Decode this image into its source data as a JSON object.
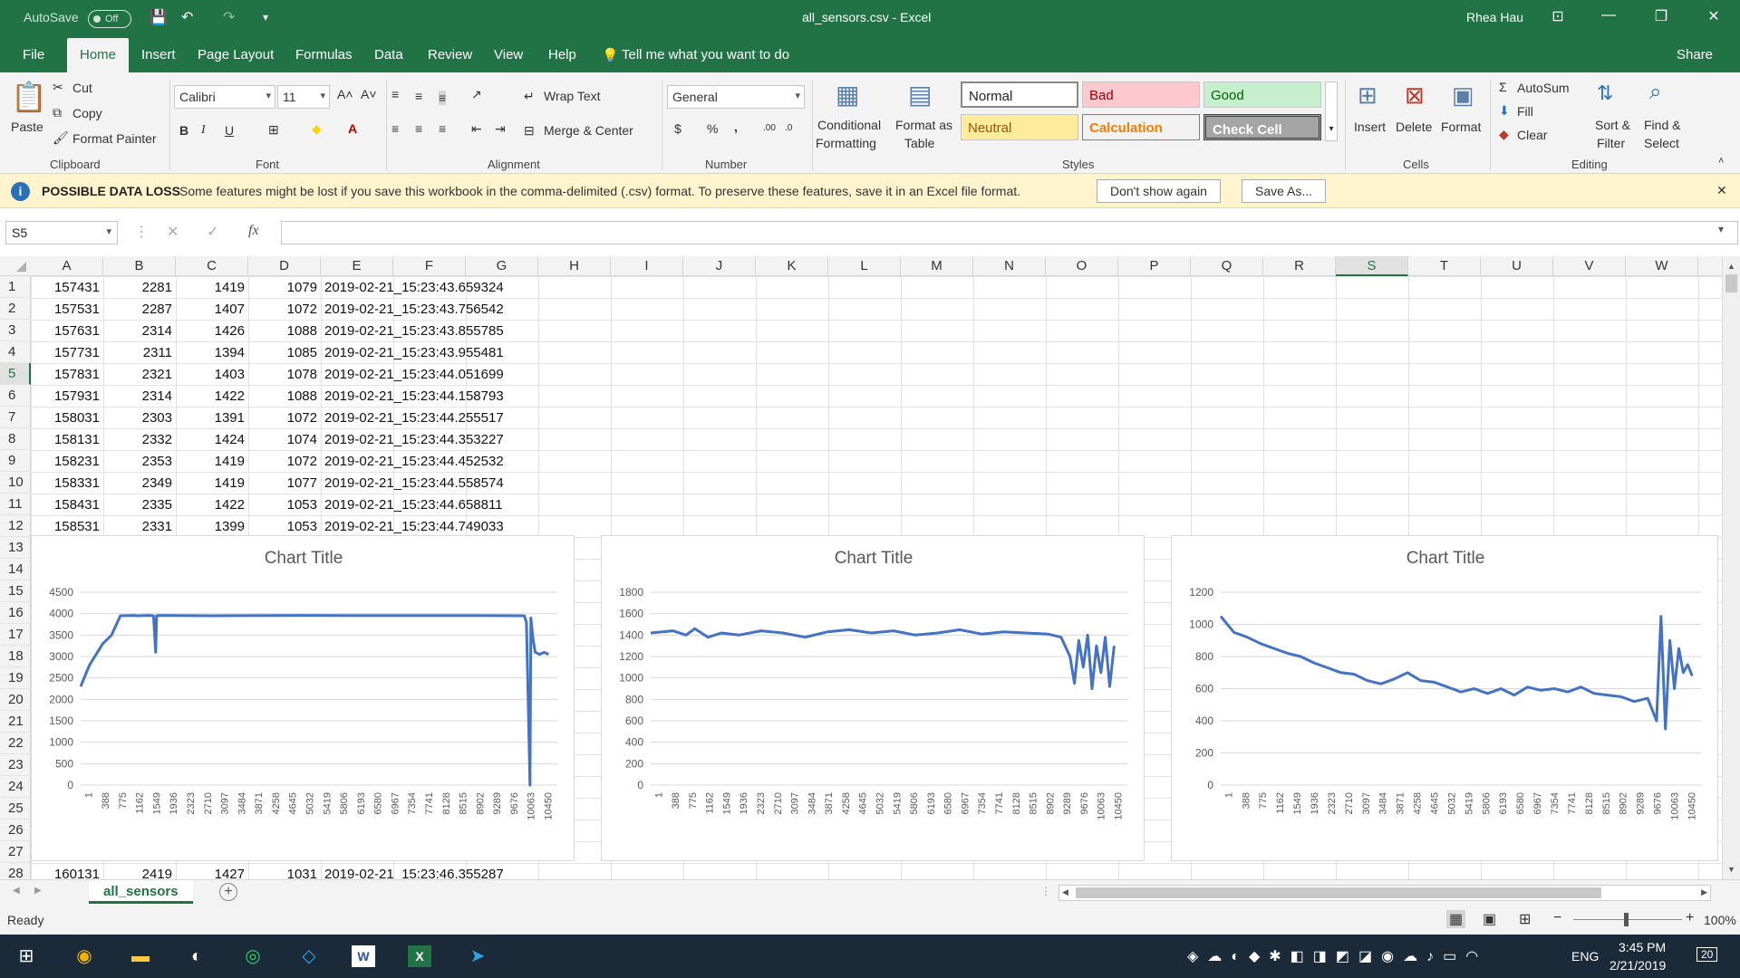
{
  "titlebar": {
    "autosave_label": "AutoSave",
    "autosave_state": "Off",
    "title": "all_sensors.csv  -  Excel",
    "user": "Rhea Hau"
  },
  "menu": {
    "tabs": [
      "File",
      "Home",
      "Insert",
      "Page Layout",
      "Formulas",
      "Data",
      "Review",
      "View",
      "Help"
    ],
    "tell_me": "Tell me what you want to do",
    "share": "Share"
  },
  "ribbon": {
    "clipboard": {
      "paste": "Paste",
      "cut": "Cut",
      "copy": "Copy",
      "format_painter": "Format Painter",
      "group": "Clipboard"
    },
    "font": {
      "name": "Calibri",
      "size": "11",
      "group": "Font"
    },
    "alignment": {
      "wrap_text": "Wrap Text",
      "merge_center": "Merge & Center",
      "group": "Alignment"
    },
    "number": {
      "format": "General",
      "currency": "$",
      "percent": "%",
      "comma": ",",
      "group": "Number"
    },
    "styles": {
      "conditional": "Conditional",
      "formatting": "Formatting",
      "format_as": "Format as",
      "table": "Table",
      "normal": "Normal",
      "bad": "Bad",
      "good": "Good",
      "neutral": "Neutral",
      "calculation": "Calculation",
      "check_cell": "Check Cell",
      "group": "Styles"
    },
    "cells": {
      "insert": "Insert",
      "delete": "Delete",
      "format": "Format",
      "group": "Cells"
    },
    "editing": {
      "autosum": "AutoSum",
      "fill": "Fill",
      "clear": "Clear",
      "sort1": "Sort &",
      "sort2": "Filter",
      "find1": "Find &",
      "find2": "Select",
      "group": "Editing"
    }
  },
  "infobar": {
    "title": "POSSIBLE DATA LOSS",
    "message": "Some features might be lost if you save this workbook in the comma-delimited (.csv) format. To preserve these features, save it in an Excel file format.",
    "dont_show": "Don't show again",
    "save_as": "Save As..."
  },
  "formula": {
    "namebox": "S5",
    "fx": "fx",
    "value": ""
  },
  "columns": [
    "A",
    "B",
    "C",
    "D",
    "E",
    "F",
    "G",
    "H",
    "I",
    "J",
    "K",
    "L",
    "M",
    "N",
    "O",
    "P",
    "Q",
    "R",
    "S",
    "T",
    "U",
    "V",
    "W"
  ],
  "selected_column": "S",
  "selected_row": 5,
  "rows": [
    "1",
    "2",
    "3",
    "4",
    "5",
    "6",
    "7",
    "8",
    "9",
    "10",
    "11",
    "12",
    "13",
    "14",
    "15",
    "16",
    "17",
    "18",
    "19",
    "20",
    "21",
    "22",
    "23",
    "24",
    "25",
    "26",
    "27",
    "28"
  ],
  "data_rows": [
    [
      "157431",
      "2281",
      "1419",
      "1079",
      "2019-02-21_15:23:43.659324"
    ],
    [
      "157531",
      "2287",
      "1407",
      "1072",
      "2019-02-21_15:23:43.756542"
    ],
    [
      "157631",
      "2314",
      "1426",
      "1088",
      "2019-02-21_15:23:43.855785"
    ],
    [
      "157731",
      "2311",
      "1394",
      "1085",
      "2019-02-21_15:23:43.955481"
    ],
    [
      "157831",
      "2321",
      "1403",
      "1078",
      "2019-02-21_15:23:44.051699"
    ],
    [
      "157931",
      "2314",
      "1422",
      "1088",
      "2019-02-21_15:23:44.158793"
    ],
    [
      "158031",
      "2303",
      "1391",
      "1072",
      "2019-02-21_15:23:44.255517"
    ],
    [
      "158131",
      "2332",
      "1424",
      "1074",
      "2019-02-21_15:23:44.353227"
    ],
    [
      "158231",
      "2353",
      "1419",
      "1072",
      "2019-02-21_15:23:44.452532"
    ],
    [
      "158331",
      "2349",
      "1419",
      "1077",
      "2019-02-21_15:23:44.558574"
    ],
    [
      "158431",
      "2335",
      "1422",
      "1053",
      "2019-02-21_15:23:44.658811"
    ],
    [
      "158531",
      "2331",
      "1399",
      "1053",
      "2019-02-21_15:23:44.749033"
    ]
  ],
  "row28": [
    "160131",
    "2419",
    "1427",
    "1031",
    "2019-02-21_15:23:46.355287"
  ],
  "chart_data": [
    {
      "type": "line",
      "title": "Chart Title",
      "ylim": [
        0,
        4500
      ],
      "yticks": [
        0,
        500,
        1000,
        1500,
        2000,
        2500,
        3000,
        3500,
        4000,
        4500
      ],
      "xticks": [
        "1",
        "388",
        "775",
        "1162",
        "1549",
        "1936",
        "2323",
        "2710",
        "3097",
        "3484",
        "3871",
        "4258",
        "4645",
        "5032",
        "5419",
        "5806",
        "6193",
        "6580",
        "6967",
        "7354",
        "7741",
        "8128",
        "8515",
        "8902",
        "9289",
        "9676",
        "10063",
        "10450"
      ],
      "xmax": 10800,
      "series": [
        {
          "values": [
            [
              1,
              2300
            ],
            [
              200,
              2800
            ],
            [
              500,
              3300
            ],
            [
              700,
              3500
            ],
            [
              900,
              3950
            ],
            [
              1200,
              3960
            ],
            [
              1300,
              3950
            ],
            [
              1550,
              3960
            ],
            [
              1650,
              3950
            ],
            [
              1700,
              3100
            ],
            [
              1720,
              3950
            ],
            [
              1800,
              3960
            ],
            [
              3000,
              3950
            ],
            [
              5000,
              3960
            ],
            [
              7000,
              3955
            ],
            [
              9000,
              3955
            ],
            [
              10050,
              3950
            ],
            [
              10100,
              3800
            ],
            [
              10150,
              1500
            ],
            [
              10180,
              0
            ],
            [
              10200,
              3900
            ],
            [
              10250,
              3400
            ],
            [
              10300,
              3100
            ],
            [
              10400,
              3050
            ],
            [
              10500,
              3100
            ],
            [
              10600,
              3050
            ]
          ]
        }
      ]
    },
    {
      "type": "line",
      "title": "Chart Title",
      "ylim": [
        0,
        1800
      ],
      "yticks": [
        0,
        200,
        400,
        600,
        800,
        1000,
        1200,
        1400,
        1600,
        1800
      ],
      "xticks": [
        "1",
        "388",
        "775",
        "1162",
        "1549",
        "1936",
        "2323",
        "2710",
        "3097",
        "3484",
        "3871",
        "4258",
        "4645",
        "5032",
        "5419",
        "5806",
        "6193",
        "6580",
        "6967",
        "7354",
        "7741",
        "8128",
        "8515",
        "8902",
        "9289",
        "9676",
        "10063",
        "10450"
      ],
      "xmax": 10800,
      "series": [
        {
          "values": [
            [
              1,
              1420
            ],
            [
              500,
              1440
            ],
            [
              800,
              1400
            ],
            [
              1000,
              1460
            ],
            [
              1300,
              1380
            ],
            [
              1600,
              1420
            ],
            [
              2000,
              1400
            ],
            [
              2500,
              1440
            ],
            [
              3000,
              1420
            ],
            [
              3500,
              1380
            ],
            [
              4000,
              1430
            ],
            [
              4500,
              1450
            ],
            [
              5000,
              1420
            ],
            [
              5500,
              1440
            ],
            [
              6000,
              1400
            ],
            [
              6500,
              1420
            ],
            [
              7000,
              1450
            ],
            [
              7500,
              1410
            ],
            [
              8000,
              1430
            ],
            [
              8500,
              1420
            ],
            [
              9000,
              1410
            ],
            [
              9300,
              1380
            ],
            [
              9500,
              1200
            ],
            [
              9600,
              950
            ],
            [
              9700,
              1350
            ],
            [
              9800,
              1100
            ],
            [
              9900,
              1400
            ],
            [
              10000,
              900
            ],
            [
              10100,
              1300
            ],
            [
              10200,
              1050
            ],
            [
              10300,
              1380
            ],
            [
              10400,
              920
            ],
            [
              10500,
              1300
            ]
          ]
        }
      ]
    },
    {
      "type": "line",
      "title": "Chart Title",
      "ylim": [
        0,
        1200
      ],
      "yticks": [
        0,
        200,
        400,
        600,
        800,
        1000,
        1200
      ],
      "xticks": [
        "1",
        "388",
        "775",
        "1162",
        "1549",
        "1936",
        "2323",
        "2710",
        "3097",
        "3484",
        "3871",
        "4258",
        "4645",
        "5032",
        "5419",
        "5806",
        "6193",
        "6580",
        "6967",
        "7354",
        "7741",
        "8128",
        "8515",
        "8902",
        "9289",
        "9676",
        "10063",
        "10450"
      ],
      "xmax": 10800,
      "series": [
        {
          "values": [
            [
              1,
              1050
            ],
            [
              300,
              950
            ],
            [
              600,
              920
            ],
            [
              900,
              880
            ],
            [
              1200,
              850
            ],
            [
              1500,
              820
            ],
            [
              1800,
              800
            ],
            [
              2100,
              760
            ],
            [
              2400,
              730
            ],
            [
              2700,
              700
            ],
            [
              3000,
              690
            ],
            [
              3300,
              650
            ],
            [
              3600,
              630
            ],
            [
              3900,
              660
            ],
            [
              4200,
              700
            ],
            [
              4500,
              650
            ],
            [
              4800,
              640
            ],
            [
              5100,
              610
            ],
            [
              5400,
              580
            ],
            [
              5700,
              600
            ],
            [
              6000,
              570
            ],
            [
              6300,
              600
            ],
            [
              6600,
              560
            ],
            [
              6900,
              610
            ],
            [
              7200,
              590
            ],
            [
              7500,
              600
            ],
            [
              7800,
              580
            ],
            [
              8100,
              610
            ],
            [
              8400,
              570
            ],
            [
              8700,
              560
            ],
            [
              9000,
              550
            ],
            [
              9300,
              520
            ],
            [
              9600,
              540
            ],
            [
              9800,
              400
            ],
            [
              9900,
              1050
            ],
            [
              10000,
              350
            ],
            [
              10100,
              900
            ],
            [
              10200,
              600
            ],
            [
              10300,
              850
            ],
            [
              10400,
              700
            ],
            [
              10500,
              750
            ],
            [
              10600,
              680
            ]
          ]
        }
      ]
    }
  ],
  "sheet": {
    "tab": "all_sensors"
  },
  "status": {
    "ready": "Ready",
    "zoom": "100%"
  },
  "taskbar": {
    "time": "3:45 PM",
    "date": "2/21/2019",
    "lang": "ENG",
    "notifications": "20"
  }
}
